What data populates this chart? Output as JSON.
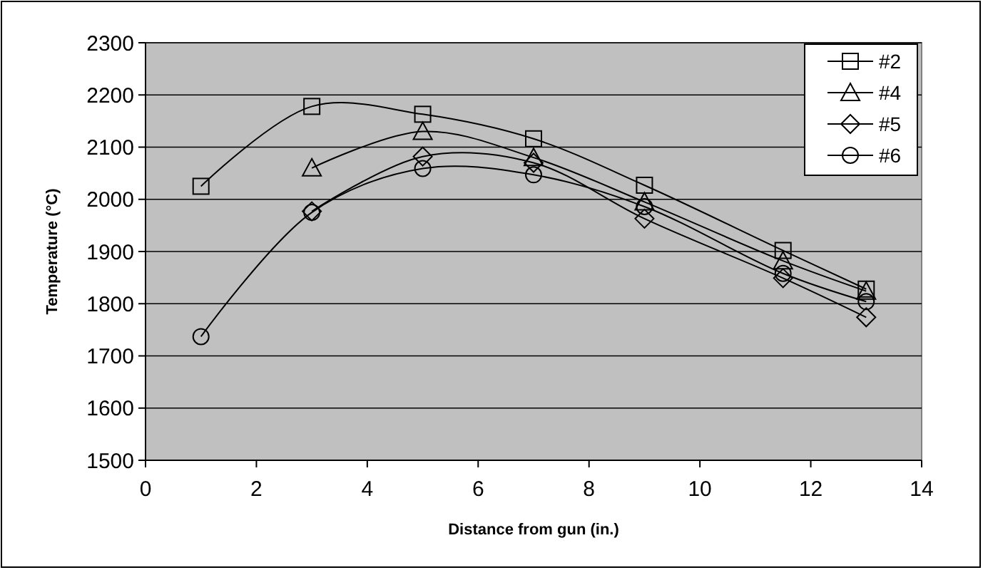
{
  "chart_data": {
    "type": "line",
    "xlabel": "Distance from gun (in.)",
    "ylabel": "Temperature (°C)",
    "xlim": [
      0,
      14
    ],
    "xticks": [
      0,
      2,
      4,
      6,
      8,
      10,
      12,
      14
    ],
    "ylim": [
      1500,
      2300
    ],
    "yticks": [
      1500,
      1600,
      1700,
      1800,
      1900,
      2000,
      2100,
      2200,
      2300
    ],
    "grid": "y",
    "legend": "top right",
    "line_style": "solid",
    "series": [
      {
        "name": "#2",
        "color": "#000000",
        "marker": "square",
        "x": [
          1,
          3,
          5,
          7,
          9,
          11.5,
          13
        ],
        "values": [
          2025,
          2178,
          2163,
          2116,
          2027,
          1902,
          1828
        ]
      },
      {
        "name": "#4",
        "color": "#000000",
        "marker": "triangle",
        "x": [
          3,
          5,
          7,
          9,
          11.5,
          13
        ],
        "values": [
          2060,
          2130,
          2080,
          1995,
          1882,
          1824
        ]
      },
      {
        "name": "#5",
        "color": "#000000",
        "marker": "diamond",
        "x": [
          3,
          5,
          7,
          9,
          11.5,
          13
        ],
        "values": [
          1977,
          2082,
          2070,
          1963,
          1849,
          1774
        ]
      },
      {
        "name": "#6",
        "color": "#000000",
        "marker": "circle",
        "x": [
          1,
          3,
          5,
          7,
          9,
          11.5,
          13
        ],
        "values": [
          1737,
          1975,
          2059,
          2047,
          1986,
          1858,
          1804
        ]
      }
    ]
  }
}
